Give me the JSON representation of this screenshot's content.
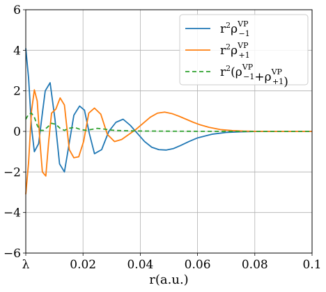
{
  "chart_data": {
    "type": "line",
    "xlabel": "r(a.u.)",
    "ylabel": "",
    "xlim": [
      0.0,
      0.1
    ],
    "ylim": [
      -6,
      6
    ],
    "xticks": [
      {
        "value": 0.0,
        "label": "λ"
      },
      {
        "value": 0.02,
        "label": "0.02"
      },
      {
        "value": 0.04,
        "label": "0.04"
      },
      {
        "value": 0.06,
        "label": "0.06"
      },
      {
        "value": 0.08,
        "label": "0.08"
      },
      {
        "value": 0.1,
        "label": "0.1"
      }
    ],
    "yticks": [
      {
        "value": -6,
        "label": "−6"
      },
      {
        "value": -4,
        "label": "−4"
      },
      {
        "value": -2,
        "label": "−2"
      },
      {
        "value": 0,
        "label": "0"
      },
      {
        "value": 2,
        "label": "2"
      },
      {
        "value": 4,
        "label": "4"
      },
      {
        "value": 6,
        "label": "6"
      }
    ],
    "grid": true,
    "legend_position": "top-right",
    "series": [
      {
        "name": "r²ρ₋₁^VP",
        "name_main": "r",
        "name_sup": "2",
        "name_rho": "ρ",
        "name_sub": "−1",
        "name_top": "VP",
        "color": "#1f77b4",
        "dash": "solid",
        "x": [
          0.0,
          0.001,
          0.002,
          0.003,
          0.0045,
          0.0058,
          0.0068,
          0.0085,
          0.0102,
          0.0118,
          0.0135,
          0.0148,
          0.0168,
          0.0188,
          0.0205,
          0.0222,
          0.024,
          0.0265,
          0.029,
          0.0315,
          0.034,
          0.0365,
          0.039,
          0.0415,
          0.044,
          0.0465,
          0.049,
          0.0515,
          0.054,
          0.057,
          0.06,
          0.065,
          0.07,
          0.075,
          0.08,
          0.09,
          0.1
        ],
        "y": [
          4.1,
          2.6,
          0.2,
          -1.0,
          -0.6,
          0.9,
          2.0,
          2.4,
          0.6,
          -1.6,
          -2.0,
          -0.9,
          0.8,
          1.25,
          1.05,
          -0.1,
          -1.1,
          -0.9,
          0.0,
          0.45,
          0.6,
          0.3,
          -0.1,
          -0.5,
          -0.78,
          -0.9,
          -0.92,
          -0.85,
          -0.7,
          -0.5,
          -0.32,
          -0.14,
          -0.05,
          -0.02,
          -0.005,
          0.0,
          0.0
        ]
      },
      {
        "name": "r²ρ₊₁^VP",
        "name_main": "r",
        "name_sup": "2",
        "name_rho": "ρ",
        "name_sub": "+1",
        "name_top": "VP",
        "color": "#ff7f0e",
        "dash": "solid",
        "x": [
          0.0,
          0.001,
          0.002,
          0.003,
          0.004,
          0.005,
          0.0058,
          0.007,
          0.008,
          0.009,
          0.0105,
          0.012,
          0.0135,
          0.0152,
          0.0168,
          0.0185,
          0.0202,
          0.022,
          0.024,
          0.0262,
          0.0285,
          0.031,
          0.0335,
          0.036,
          0.0385,
          0.041,
          0.0435,
          0.046,
          0.0485,
          0.051,
          0.0535,
          0.056,
          0.0585,
          0.061,
          0.064,
          0.068,
          0.072,
          0.076,
          0.08,
          0.09,
          0.1
        ],
        "y": [
          -3.1,
          -1.5,
          1.0,
          2.05,
          1.5,
          -0.6,
          -2.0,
          -2.2,
          -0.5,
          0.9,
          1.1,
          1.65,
          1.3,
          -0.9,
          -1.3,
          -1.25,
          -0.5,
          0.9,
          1.15,
          0.85,
          -0.15,
          -0.5,
          -0.4,
          -0.15,
          0.1,
          0.4,
          0.7,
          0.9,
          0.95,
          0.88,
          0.75,
          0.6,
          0.45,
          0.32,
          0.2,
          0.09,
          0.04,
          0.015,
          0.005,
          0.0,
          0.0
        ]
      },
      {
        "name": "r²(ρ₋₁^VP + ρ₊₁^VP)",
        "name_main": "r",
        "name_sup": "2",
        "name_open": "(",
        "name_rho": "ρ",
        "name_sub": "−1",
        "name_top": "VP",
        "name_plus": "+",
        "name_rho2": "ρ",
        "name_sub2": "+1",
        "name_top2": "VP",
        "name_close": ")",
        "color": "#2ca02c",
        "dash": "6,4",
        "x": [
          0.0,
          0.001,
          0.002,
          0.003,
          0.004,
          0.005,
          0.0062,
          0.0075,
          0.009,
          0.0105,
          0.012,
          0.0135,
          0.015,
          0.017,
          0.019,
          0.021,
          0.023,
          0.025,
          0.027,
          0.029,
          0.031,
          0.033,
          0.036,
          0.04,
          0.05,
          0.06,
          0.07,
          0.08,
          0.1
        ],
        "y": [
          0.6,
          0.85,
          0.9,
          0.7,
          0.3,
          0.05,
          0.05,
          0.2,
          0.4,
          0.35,
          0.15,
          0.05,
          0.15,
          0.2,
          0.1,
          0.05,
          0.1,
          0.15,
          0.12,
          0.08,
          0.05,
          0.04,
          0.03,
          0.02,
          0.01,
          0.005,
          0.002,
          0.0,
          0.0
        ]
      }
    ]
  }
}
